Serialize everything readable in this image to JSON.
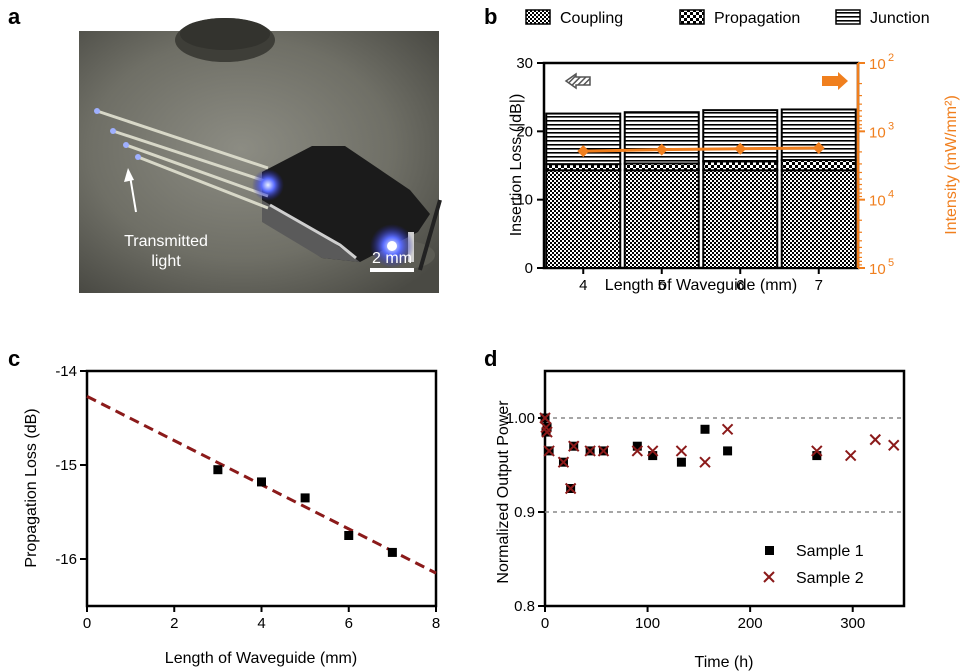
{
  "panels": {
    "a": "a",
    "b": "b",
    "c": "c",
    "d": "d"
  },
  "photo": {
    "annotation_line1": "Transmitted",
    "annotation_line2": "light",
    "scalebar_label": "2 mm"
  },
  "colors": {
    "orange": "#f07f1e",
    "darkred": "#8b1a1a",
    "black": "#000000"
  },
  "chart_data": [
    {
      "panel": "b",
      "type": "bar",
      "stacked": true,
      "categories": [
        "4",
        "5",
        "6",
        "7"
      ],
      "xlabel": "Length of Waveguide (mm)",
      "ylabel": "Insertion Loss (|dB|)",
      "ylim": [
        0,
        30
      ],
      "yticks": [
        "0",
        "10",
        "20",
        "30"
      ],
      "series": [
        {
          "name": "Coupling",
          "values": [
            14.3,
            14.3,
            14.3,
            14.3
          ]
        },
        {
          "name": "Propagation",
          "values": [
            0.9,
            1.0,
            1.3,
            1.5
          ]
        },
        {
          "name": "Junction",
          "values": [
            7.4,
            7.5,
            7.5,
            7.4
          ]
        }
      ],
      "legend_position": "top",
      "secondary_axis": {
        "label": "Intensity (mW/mm²)",
        "scale": "log",
        "reversed": true,
        "ticks": [
          "10",
          "10",
          "10",
          "10",
          "10"
        ],
        "tick_exponents": [
          "2",
          "3",
          "4",
          "5"
        ],
        "series": {
          "values": [
            1950,
            1850,
            1800,
            1750
          ]
        }
      }
    },
    {
      "panel": "c",
      "type": "scatter",
      "xlabel": "Length of Waveguide (mm)",
      "ylabel": "Propagation Loss (dB)",
      "xlim": [
        0,
        8
      ],
      "ylim": [
        -16.5,
        -14
      ],
      "xticks": [
        "0",
        "2",
        "4",
        "6",
        "8"
      ],
      "yticks": [
        "-14",
        "-15",
        "-16"
      ],
      "points": {
        "x": [
          3,
          4,
          5,
          6,
          7
        ],
        "y": [
          -15.05,
          -15.18,
          -15.35,
          -15.75,
          -15.93
        ]
      },
      "fit_line": {
        "x": [
          0,
          8
        ],
        "y": [
          -14.27,
          -16.15
        ]
      }
    },
    {
      "panel": "d",
      "type": "scatter",
      "xlabel": "Time (h)",
      "ylabel": "Normalized Output Power",
      "xlim": [
        0,
        350
      ],
      "ylim": [
        0.8,
        1.05
      ],
      "xticks": [
        "0",
        "100",
        "200",
        "300"
      ],
      "yticks": [
        "0.8",
        "0.9",
        "1.00"
      ],
      "reference_lines": [
        1.0,
        0.9
      ],
      "legend_position": "bottom-right",
      "series": [
        {
          "name": "Sample 1",
          "x": [
            0,
            1,
            2,
            4,
            18,
            25,
            28,
            44,
            57,
            90,
            105,
            133,
            156,
            178,
            265
          ],
          "y": [
            1.0,
            0.985,
            0.99,
            0.965,
            0.953,
            0.925,
            0.97,
            0.965,
            0.965,
            0.97,
            0.96,
            0.953,
            0.988,
            0.965,
            0.96
          ]
        },
        {
          "name": "Sample 2",
          "x": [
            0,
            1,
            2,
            4,
            18,
            25,
            28,
            44,
            57,
            90,
            105,
            133,
            156,
            178,
            265,
            298,
            322,
            340
          ],
          "y": [
            1.0,
            0.99,
            0.985,
            0.965,
            0.953,
            0.925,
            0.97,
            0.965,
            0.965,
            0.965,
            0.965,
            0.965,
            0.953,
            0.988,
            0.965,
            0.96,
            0.977,
            0.971
          ]
        }
      ]
    }
  ]
}
